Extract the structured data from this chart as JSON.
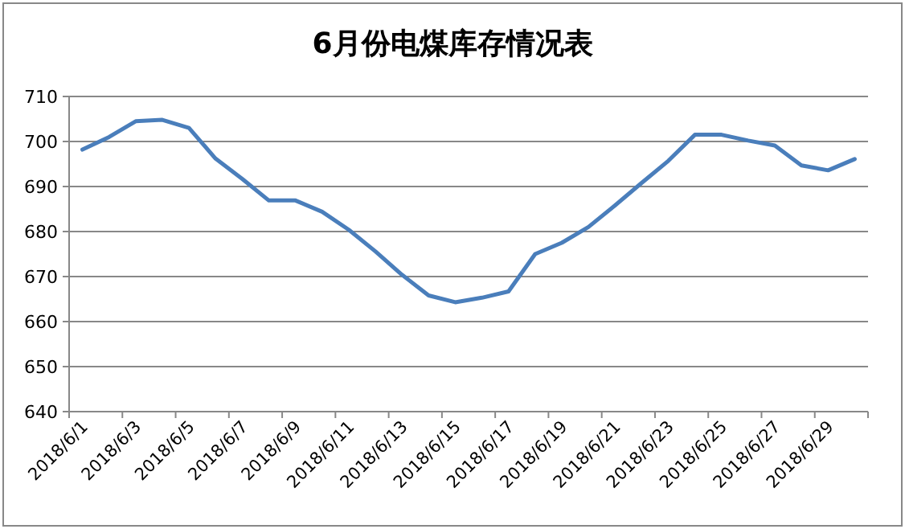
{
  "chart_data": {
    "type": "line",
    "title": "6月份电煤库存情况表",
    "categories": [
      "2018/6/1",
      null,
      "2018/6/3",
      null,
      "2018/6/5",
      null,
      "2018/6/7",
      null,
      "2018/6/9",
      null,
      "2018/6/11",
      null,
      "2018/6/13",
      null,
      "2018/6/15",
      null,
      "2018/6/17",
      null,
      "2018/6/19",
      null,
      "2018/6/21",
      null,
      "2018/6/23",
      null,
      "2018/6/25",
      null,
      "2018/6/27",
      null,
      "2018/6/29",
      null
    ],
    "series": [
      {
        "color": "#4a7ebb",
        "values": [
          698.2,
          701,
          704.5,
          704.8,
          703,
          696.2,
          691.7,
          686.9,
          686.9,
          684.4,
          680.4,
          675.6,
          670.4,
          665.8,
          664.3,
          665.3,
          666.7,
          675,
          677.5,
          681,
          685.8,
          690.8,
          695.7,
          701.5,
          701.5,
          700.2,
          699.1,
          694.7,
          693.6,
          696.1
        ]
      }
    ],
    "ylim": [
      640,
      710
    ],
    "yticks": [
      640,
      650,
      660,
      670,
      680,
      690,
      700,
      710
    ],
    "grid": "y"
  }
}
